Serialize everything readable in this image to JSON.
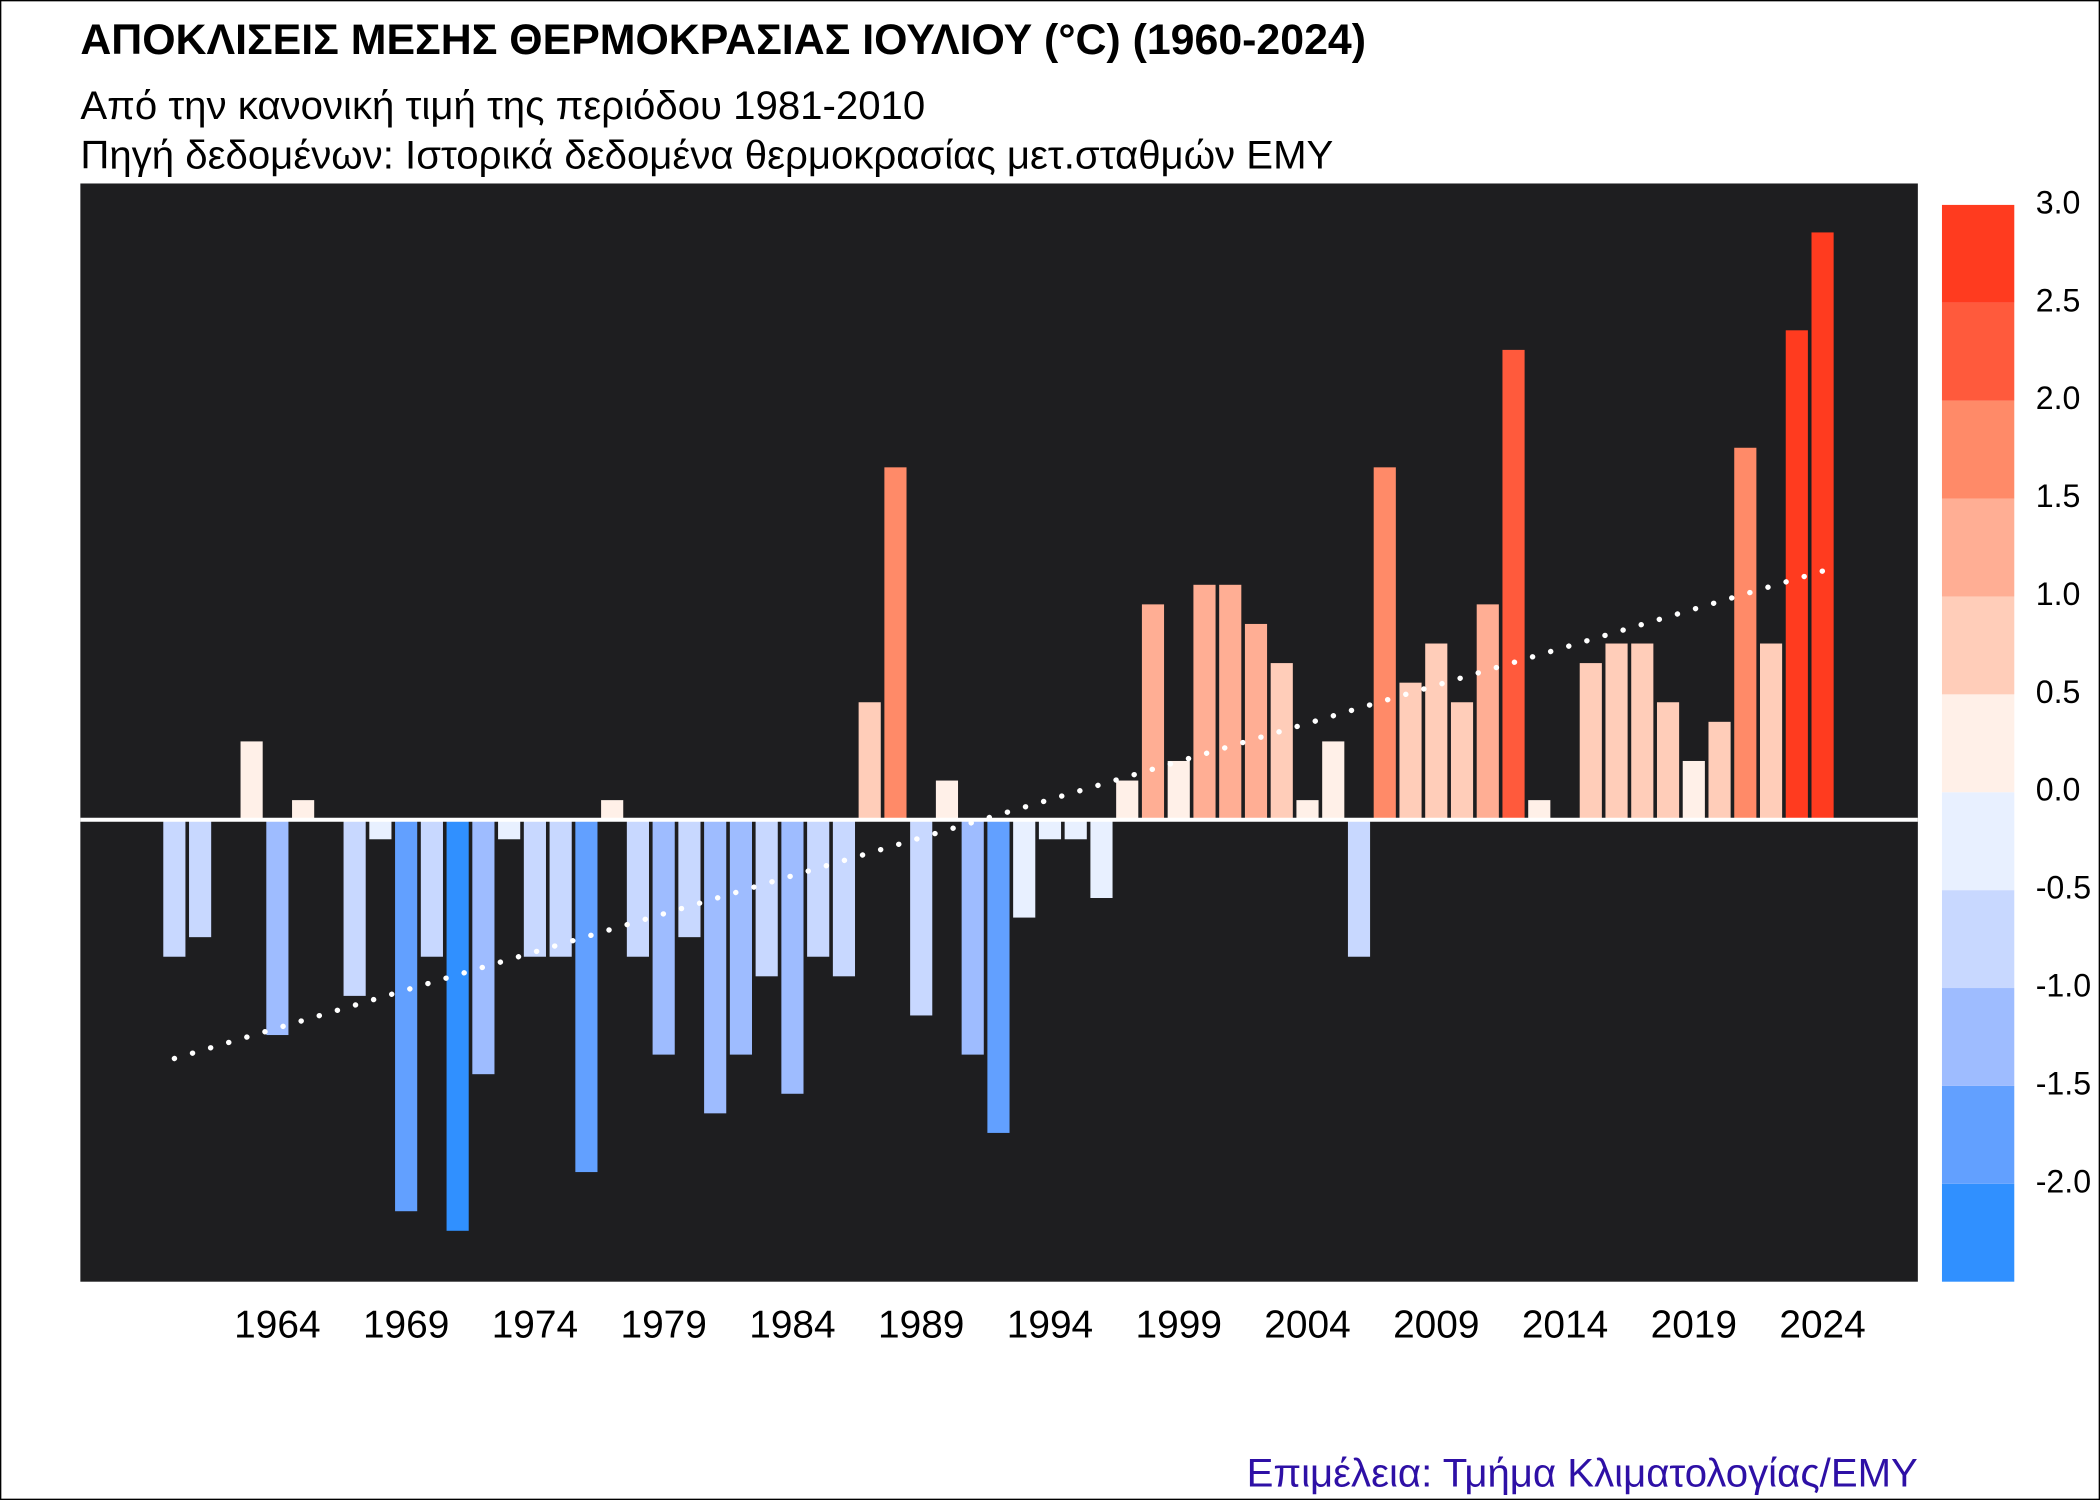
{
  "chart_data": {
    "type": "bar",
    "title": "ΑΠΟΚΛΙΣΕΙΣ ΜΕΣΗΣ ΘΕΡΜΟΚΡΑΣΙΑΣ ΙΟΥΛΙΟΥ (°C) (1960-2024)",
    "subtitle": [
      "Από την κανονική τιμή της περιόδου 1981-2010",
      "Πηγή δεδομένων: Ιστορικά δεδομένα θερμοκρασίας μετ.σταθμών ΕΜΥ"
    ],
    "caption": "Επιμέλεια: Τμήμα Κλιματολογίας/ΕΜΥ",
    "caption_color": "#2e10a6",
    "background": "#1e1e20",
    "x": [
      1960,
      1961,
      1962,
      1963,
      1964,
      1965,
      1966,
      1967,
      1968,
      1969,
      1970,
      1971,
      1972,
      1973,
      1974,
      1975,
      1976,
      1977,
      1978,
      1979,
      1980,
      1981,
      1982,
      1983,
      1984,
      1985,
      1986,
      1987,
      1988,
      1989,
      1990,
      1991,
      1992,
      1993,
      1994,
      1995,
      1996,
      1997,
      1998,
      1999,
      2000,
      2001,
      2002,
      2003,
      2004,
      2005,
      2006,
      2007,
      2008,
      2009,
      2010,
      2011,
      2012,
      2013,
      2014,
      2015,
      2016,
      2017,
      2018,
      2019,
      2020,
      2021,
      2022,
      2023,
      2024
    ],
    "values": [
      -0.7,
      -0.6,
      0,
      0.4,
      -1.1,
      0.1,
      0,
      -0.9,
      -0.1,
      -2.0,
      -0.7,
      -2.1,
      -1.3,
      -0.1,
      -0.7,
      -0.7,
      -1.8,
      0.1,
      -0.7,
      -1.2,
      -0.6,
      -1.5,
      -1.2,
      -0.8,
      -1.4,
      -0.7,
      -0.8,
      0.6,
      1.8,
      -1.0,
      0.2,
      -1.2,
      -1.6,
      -0.5,
      -0.1,
      -0.1,
      -0.4,
      0.2,
      1.1,
      0.3,
      1.2,
      1.2,
      1.0,
      0.8,
      0.1,
      0.4,
      -0.7,
      1.8,
      0.7,
      0.9,
      0.6,
      1.1,
      2.4,
      0.1,
      0,
      0.8,
      0.9,
      0.9,
      0.6,
      0.3,
      0.5,
      1.9,
      0.9,
      2.5,
      3.0
    ],
    "xlim": [
      1956.35,
      2027.7
    ],
    "xticks": [
      1964,
      1969,
      1974,
      1979,
      1984,
      1989,
      1994,
      1999,
      2004,
      2009,
      2014,
      2019,
      2024
    ],
    "ylim": [
      -2.36,
      3.25
    ],
    "trend": {
      "x": [
        1960,
        2024
      ],
      "values": [
        -1.22,
        1.27
      ],
      "color": "#ffffff",
      "style": "dotted"
    },
    "colorbar": {
      "lim": [
        -2.5,
        3.0
      ],
      "ticks": [
        {
          "value": 3,
          "label": "3.0"
        },
        2.5,
        {
          "value": 2,
          "label": "2.0"
        },
        1.5,
        {
          "value": 1,
          "label": "1.0"
        },
        0.5,
        {
          "value": 0,
          "label": "0.0"
        },
        -0.5,
        {
          "value": -1,
          "label": "-1.0"
        },
        -1.5,
        {
          "value": -2,
          "label": "-2.0"
        }
      ],
      "colors": [
        "#3090ff",
        "#62a0ff",
        "#9ebcff",
        "#c8d8ff",
        "#e8f0ff",
        "#fff0e8",
        "#ffcdb9",
        "#ffae94",
        "#ff8a68",
        "#ff5a3c",
        "#ff3b1f"
      ]
    }
  }
}
